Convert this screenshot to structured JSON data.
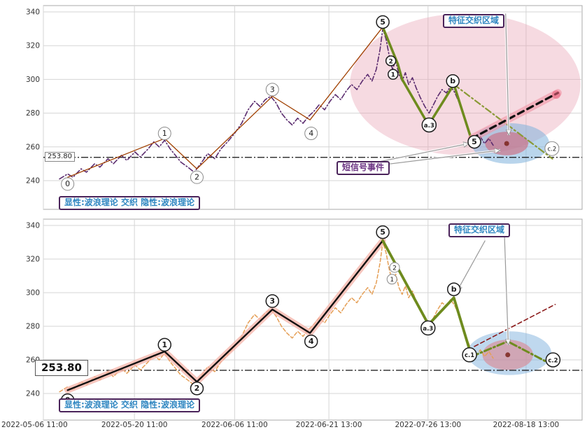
{
  "chart_data": {
    "type": "line",
    "title": "",
    "grid": true,
    "xticks": [
      {
        "f": 0.0,
        "label": "2022-05-06 11:00"
      },
      {
        "f": 0.169,
        "label": "2022-05-20 11:00"
      },
      {
        "f": 0.355,
        "label": "2022-06-06 11:00"
      },
      {
        "f": 0.53,
        "label": "2022-06-21 13:00"
      },
      {
        "f": 0.714,
        "label": "2022-07-26 13:00"
      },
      {
        "f": 0.896,
        "label": "2022-08-18 13:00"
      }
    ],
    "price_path": [
      [
        0.03,
        241
      ],
      [
        0.045,
        244
      ],
      [
        0.055,
        242
      ],
      [
        0.07,
        247
      ],
      [
        0.08,
        245
      ],
      [
        0.095,
        250
      ],
      [
        0.105,
        248
      ],
      [
        0.12,
        253
      ],
      [
        0.13,
        250
      ],
      [
        0.145,
        255
      ],
      [
        0.155,
        252
      ],
      [
        0.17,
        257
      ],
      [
        0.18,
        254
      ],
      [
        0.195,
        259
      ],
      [
        0.205,
        263
      ],
      [
        0.215,
        260
      ],
      [
        0.225,
        264
      ],
      [
        0.235,
        259
      ],
      [
        0.245,
        255
      ],
      [
        0.255,
        251
      ],
      [
        0.268,
        248
      ],
      [
        0.28,
        245
      ],
      [
        0.292,
        250
      ],
      [
        0.305,
        256
      ],
      [
        0.318,
        253
      ],
      [
        0.33,
        259
      ],
      [
        0.342,
        263
      ],
      [
        0.355,
        268
      ],
      [
        0.368,
        274
      ],
      [
        0.38,
        282
      ],
      [
        0.392,
        287
      ],
      [
        0.402,
        284
      ],
      [
        0.412,
        288
      ],
      [
        0.422,
        290
      ],
      [
        0.432,
        286
      ],
      [
        0.442,
        280
      ],
      [
        0.452,
        276
      ],
      [
        0.462,
        273
      ],
      [
        0.472,
        277
      ],
      [
        0.482,
        274
      ],
      [
        0.492,
        278
      ],
      [
        0.502,
        281
      ],
      [
        0.512,
        285
      ],
      [
        0.522,
        282
      ],
      [
        0.532,
        287
      ],
      [
        0.542,
        291
      ],
      [
        0.552,
        288
      ],
      [
        0.562,
        293
      ],
      [
        0.572,
        297
      ],
      [
        0.582,
        294
      ],
      [
        0.592,
        299
      ],
      [
        0.602,
        303
      ],
      [
        0.61,
        299
      ],
      [
        0.618,
        306
      ],
      [
        0.625,
        318
      ],
      [
        0.63,
        330
      ],
      [
        0.636,
        324
      ],
      [
        0.642,
        314
      ],
      [
        0.648,
        306
      ],
      [
        0.654,
        311
      ],
      [
        0.66,
        303
      ],
      [
        0.666,
        299
      ],
      [
        0.672,
        304
      ],
      [
        0.678,
        297
      ],
      [
        0.685,
        301
      ],
      [
        0.692,
        295
      ],
      [
        0.7,
        289
      ],
      [
        0.708,
        284
      ],
      [
        0.716,
        280
      ],
      [
        0.724,
        285
      ],
      [
        0.732,
        290
      ],
      [
        0.74,
        294
      ],
      [
        0.748,
        292
      ],
      [
        0.756,
        296
      ],
      [
        0.764,
        292
      ],
      [
        0.772,
        286
      ],
      [
        0.78,
        278
      ],
      [
        0.788,
        271
      ],
      [
        0.795,
        265
      ],
      [
        0.803,
        262
      ],
      [
        0.811,
        266
      ],
      [
        0.819,
        262
      ],
      [
        0.827,
        265
      ],
      [
        0.835,
        261
      ]
    ],
    "impulse_path": [
      [
        0.045,
        242
      ],
      [
        0.225,
        265
      ],
      [
        0.285,
        247
      ],
      [
        0.425,
        290
      ],
      [
        0.495,
        276
      ],
      [
        0.63,
        331
      ]
    ],
    "panels": [
      {
        "name": "显性面板",
        "yticks": [
          240,
          260,
          280,
          300,
          320,
          340
        ],
        "hline": 253.8,
        "hline_label": "253.80",
        "legend_label": "显性:波浪理论 交织 隐性:波浪理论",
        "region_label": "特征交织区域",
        "signal_label": "短信号事件",
        "series": [
          {
            "key": "price",
            "points": "price_path"
          },
          {
            "key": "impulse",
            "points": "impulse_path"
          },
          {
            "key": "corrective",
            "points": [
              [
                0.63,
                331
              ],
              [
                0.658,
                309
              ],
              [
                0.666,
                300
              ],
              [
                0.715,
                273
              ],
              [
                0.762,
                297
              ],
              [
                0.795,
                264
              ]
            ]
          },
          {
            "key": "corrective_ext",
            "points": [
              [
                0.762,
                297
              ],
              [
                0.945,
                253
              ]
            ]
          },
          {
            "key": "forecast",
            "points": [
              [
                0.795,
                265
              ],
              [
                0.955,
                292
              ]
            ]
          }
        ],
        "wave_labels": [
          {
            "x": 0.045,
            "v": 238,
            "t": "0"
          },
          {
            "x": 0.225,
            "v": 268,
            "t": "1"
          },
          {
            "x": 0.285,
            "v": 242,
            "t": "2"
          },
          {
            "x": 0.425,
            "v": 294,
            "t": "3"
          },
          {
            "x": 0.497,
            "v": 268,
            "t": "4"
          },
          {
            "x": 0.63,
            "v": 334,
            "t": "5",
            "bold": true
          },
          {
            "x": 0.645,
            "v": 311,
            "t": "2",
            "bold": true,
            "small": true
          },
          {
            "x": 0.649,
            "v": 303,
            "t": "1",
            "bold": true,
            "small": true
          },
          {
            "x": 0.716,
            "v": 273,
            "t": "a.3",
            "bold": true
          },
          {
            "x": 0.76,
            "v": 299,
            "t": "b",
            "bold": true
          },
          {
            "x": 0.8,
            "v": 263,
            "t": "5",
            "bold": true
          },
          {
            "x": 0.944,
            "v": 259,
            "t": "c.2"
          }
        ],
        "ellipses": [
          {
            "x": 0.783,
            "v": 297,
            "rx": 0.214,
            "rv": 42,
            "fill": "#e8a2b4",
            "opacity": 0.4
          },
          {
            "x": 0.867,
            "v": 262,
            "rx": 0.072,
            "rv": 12,
            "fill": "#7fb2dd",
            "opacity": 0.55
          },
          {
            "x": 0.86,
            "v": 262,
            "rx": 0.04,
            "rv": 7,
            "fill": "#cf6679",
            "opacity": 0.6
          }
        ],
        "dots": [
          {
            "x": 0.86,
            "v": 262,
            "r": 3.5,
            "fill": "#7b241c",
            "opacity": 0.85
          },
          {
            "x": 0.952,
            "v": 291,
            "r": 6,
            "fill": "#e8607a",
            "opacity": 0.6
          }
        ],
        "arrows": [
          {
            "x1": 0.858,
            "v1": 339,
            "x2": 0.864,
            "v2": 267
          },
          {
            "x1": 0.62,
            "v1": 251,
            "x2": 0.79,
            "v2": 262
          },
          {
            "x1": 0.62,
            "v1": 249,
            "x2": 0.848,
            "v2": 258
          }
        ]
      },
      {
        "name": "隐性面板",
        "yticks": [
          240,
          260,
          280,
          300,
          320,
          340
        ],
        "hline": 253.8,
        "hline_label": "253.80",
        "legend_label": "显性:波浪理论 交织 隐性:波浪理论",
        "region_label": "特征交织区域",
        "signal_label": "",
        "series": [
          {
            "key": "price",
            "points": "price_path"
          },
          {
            "key": "impulse",
            "points": "impulse_path"
          },
          {
            "key": "retrace",
            "points": [
              [
                0.63,
                331
              ],
              [
                0.715,
                281
              ]
            ]
          },
          {
            "key": "corrective",
            "points": [
              [
                0.63,
                331
              ],
              [
                0.715,
                281
              ],
              [
                0.762,
                297
              ],
              [
                0.795,
                262
              ]
            ]
          },
          {
            "key": "corrective_ext",
            "points": [
              [
                0.795,
                262
              ],
              [
                0.862,
                271
              ],
              [
                0.945,
                257
              ]
            ]
          },
          {
            "key": "forecast",
            "points": [
              [
                0.8,
                268
              ],
              [
                0.95,
                293
              ]
            ]
          }
        ],
        "wave_labels": [
          {
            "x": 0.045,
            "v": 236,
            "t": "0",
            "bold": true
          },
          {
            "x": 0.225,
            "v": 269,
            "t": "1",
            "bold": true
          },
          {
            "x": 0.285,
            "v": 243,
            "t": "2",
            "bold": true
          },
          {
            "x": 0.425,
            "v": 295,
            "t": "3",
            "bold": true
          },
          {
            "x": 0.497,
            "v": 271,
            "t": "4",
            "bold": true
          },
          {
            "x": 0.63,
            "v": 336,
            "t": "5",
            "bold": true
          },
          {
            "x": 0.652,
            "v": 315,
            "t": "2",
            "small": true
          },
          {
            "x": 0.647,
            "v": 308,
            "t": "1",
            "small": true
          },
          {
            "x": 0.714,
            "v": 279,
            "t": "a.3",
            "bold": true
          },
          {
            "x": 0.762,
            "v": 302,
            "t": "b",
            "bold": true
          },
          {
            "x": 0.791,
            "v": 263,
            "t": "c.1",
            "bold": true
          },
          {
            "x": 0.946,
            "v": 260,
            "t": "c.2",
            "bold": true
          }
        ],
        "ellipses": [
          {
            "x": 0.865,
            "v": 264,
            "rx": 0.078,
            "rv": 13,
            "fill": "#7fb2dd",
            "opacity": 0.5
          },
          {
            "x": 0.862,
            "v": 263,
            "rx": 0.047,
            "rv": 9,
            "fill": "#d98c96",
            "opacity": 0.65
          }
        ],
        "dots": [
          {
            "x": 0.862,
            "v": 263,
            "r": 3.5,
            "fill": "#7b241c",
            "opacity": 0.85
          }
        ],
        "arrows": [
          {
            "x1": 0.856,
            "v1": 333,
            "x2": 0.863,
            "v2": 269
          },
          {
            "x1": 0.82,
            "v1": 331,
            "x2": 0.768,
            "v2": 301
          }
        ],
        "xtick_labels_visible": true
      }
    ]
  }
}
